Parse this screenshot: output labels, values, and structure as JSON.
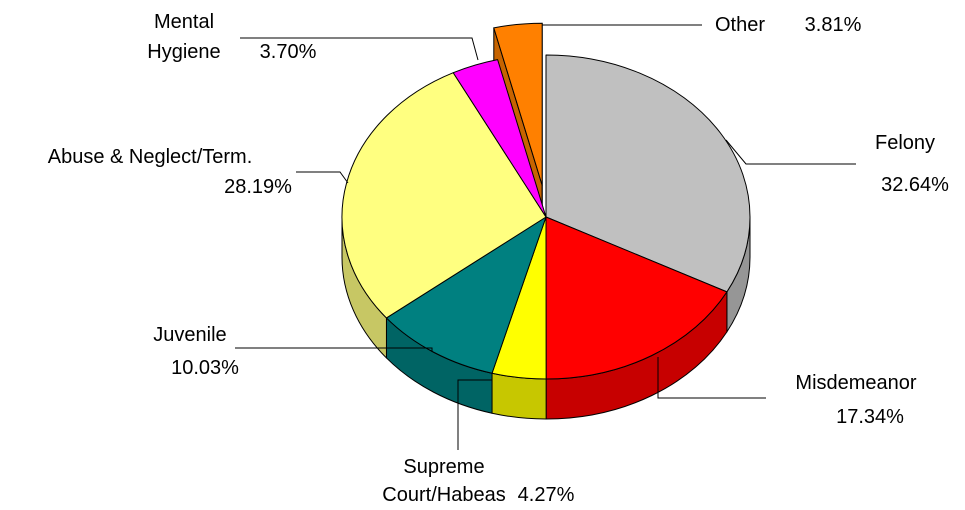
{
  "chart_data": {
    "type": "pie",
    "categories": [
      "Felony",
      "Misdemeanor",
      "Supreme Court/Habeas",
      "Juvenile",
      "Abuse & Neglect/Term.",
      "Mental Hygiene",
      "Other"
    ],
    "values": [
      32.64,
      17.34,
      4.27,
      10.03,
      28.19,
      3.7,
      3.81
    ],
    "value_labels": [
      "32.64%",
      "17.34%",
      "4.27%",
      "10.03%",
      "28.19%",
      "3.70%",
      "3.81%"
    ],
    "colors": [
      "#c0c0c0",
      "#ff0000",
      "#ffff00",
      "#008080",
      "#ffff80",
      "#ff00ff",
      "#ff8000"
    ],
    "exploded": "Other"
  }
}
